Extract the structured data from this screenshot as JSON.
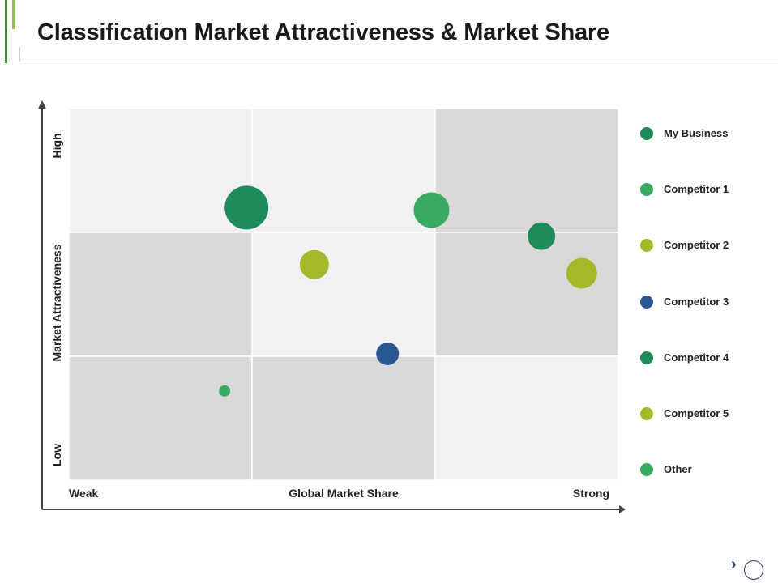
{
  "title": "Classification Market Attractiveness & Market Share",
  "colors": {
    "accent_dark": "#3f8a3a",
    "accent_light": "#8dc63f",
    "cell_light": "#f1f1f1",
    "cell_dark": "#d9d9d9",
    "axis": "#444444",
    "nav": "#1f3b70"
  },
  "icons": {
    "nav_next": "chevron-right-icon",
    "nav_circle": "circle-icon"
  },
  "nav": {
    "chevron_glyph": "›"
  },
  "chart_data": {
    "type": "scatter",
    "subtype": "bubble-matrix",
    "xlabel": "Global Market Share",
    "ylabel": "Market Attractiveness",
    "x_low_label": "Weak",
    "x_high_label": "Strong",
    "y_low_label": "Low",
    "y_high_label": "High",
    "xlim": [
      0,
      3
    ],
    "ylim": [
      0,
      3
    ],
    "grid": "3x3",
    "cell_shading": [
      [
        "light",
        "light",
        "dark"
      ],
      [
        "dark",
        "light",
        "dark"
      ],
      [
        "dark",
        "dark",
        "light"
      ]
    ],
    "legend_position": "right",
    "series": [
      {
        "name": "My Business",
        "color": "#1f8a5a",
        "points": [
          {
            "x": 0.97,
            "y": 2.2,
            "size": 27
          },
          {
            "x": 2.58,
            "y": 1.97,
            "size": 17
          }
        ]
      },
      {
        "name": "Competitor 1",
        "color": "#3aaa63",
        "points": [
          {
            "x": 1.98,
            "y": 2.18,
            "size": 22
          }
        ]
      },
      {
        "name": "Competitor 2",
        "color": "#a6b82a",
        "points": [
          {
            "x": 1.34,
            "y": 1.74,
            "size": 18
          },
          {
            "x": 2.8,
            "y": 1.67,
            "size": 19
          }
        ]
      },
      {
        "name": "Competitor 3",
        "color": "#2b5694",
        "points": [
          {
            "x": 1.74,
            "y": 1.02,
            "size": 14
          }
        ]
      },
      {
        "name": "Competitor 4",
        "color": "#1f8a5a",
        "points": []
      },
      {
        "name": "Competitor 5",
        "color": "#a6b82a",
        "points": []
      },
      {
        "name": "Other",
        "color": "#3aaa63",
        "points": [
          {
            "x": 0.85,
            "y": 0.72,
            "size": 7
          }
        ]
      }
    ]
  }
}
